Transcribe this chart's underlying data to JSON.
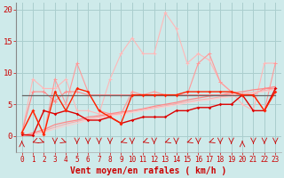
{
  "background_color": "#ceeaea",
  "grid_color": "#aacece",
  "xlabel": "Vent moyen/en rafales ( km/h )",
  "xlabel_color": "#cc0000",
  "xlabel_fontsize": 7,
  "tick_color": "#cc0000",
  "ylim": [
    0,
    21
  ],
  "xlim": [
    -0.5,
    23.5
  ],
  "yticks": [
    0,
    5,
    10,
    15,
    20
  ],
  "xticks": [
    0,
    1,
    2,
    3,
    4,
    5,
    6,
    7,
    8,
    9,
    10,
    11,
    12,
    13,
    14,
    15,
    16,
    17,
    18,
    19,
    20,
    21,
    22,
    23
  ],
  "y_lightest_pink": [
    0.5,
    9,
    7.5,
    7.5,
    9,
    4,
    4,
    3.5,
    9,
    13,
    15.5,
    13,
    13,
    19.5,
    17,
    11.5,
    13,
    12,
    8.5,
    7,
    5,
    4,
    11.5,
    11.5
  ],
  "y_light_pink": [
    0.5,
    4,
    0.2,
    9,
    5,
    11.5,
    7,
    4,
    3.5,
    3.5,
    7,
    6.5,
    7,
    6.5,
    6.5,
    6.5,
    11.5,
    13,
    8.5,
    7,
    6.5,
    6.5,
    4,
    11.5
  ],
  "y_med_pink": [
    0.5,
    7,
    7,
    5.5,
    7,
    7,
    6.5,
    6.5,
    6.5,
    6.5,
    6.5,
    6.5,
    6.5,
    6.5,
    6.5,
    6.5,
    6.5,
    6.5,
    6.5,
    6.5,
    6.5,
    6.5,
    7.5,
    7.5
  ],
  "y_hline": [
    6.5,
    6.5,
    6.5,
    6.5,
    6.5,
    6.5,
    6.5,
    6.5,
    6.5,
    6.5,
    6.5,
    6.5,
    6.5,
    6.5,
    6.5,
    6.5,
    6.5,
    6.5,
    6.5,
    6.5,
    6.5,
    6.5,
    6.5,
    6.5
  ],
  "y_red1": [
    0.0,
    0.5,
    1.0,
    1.8,
    2.2,
    2.5,
    3.0,
    3.2,
    3.5,
    3.8,
    4.0,
    4.3,
    4.7,
    5.0,
    5.3,
    5.7,
    6.0,
    6.3,
    6.5,
    6.8,
    7.0,
    7.3,
    7.5,
    7.8
  ],
  "y_red2": [
    0.0,
    0.3,
    0.8,
    1.4,
    1.9,
    2.3,
    2.7,
    3.0,
    3.3,
    3.6,
    3.9,
    4.2,
    4.5,
    4.8,
    5.1,
    5.4,
    5.7,
    5.9,
    6.2,
    6.4,
    6.7,
    6.9,
    7.2,
    7.5
  ],
  "y_red3": [
    0.0,
    0.2,
    0.6,
    1.1,
    1.6,
    2.0,
    2.5,
    2.8,
    3.1,
    3.4,
    3.7,
    4.0,
    4.3,
    4.6,
    4.9,
    5.2,
    5.5,
    5.7,
    6.0,
    6.2,
    6.5,
    6.8,
    7.0,
    7.3
  ],
  "y_dark_red1": [
    0.2,
    0.1,
    4.0,
    3.5,
    4.0,
    3.5,
    2.5,
    2.5,
    3.0,
    2.0,
    2.5,
    3.0,
    3.0,
    3.0,
    4.0,
    4.0,
    4.5,
    4.5,
    5.0,
    5.0,
    6.5,
    4.0,
    4.0,
    7.5
  ],
  "y_dark_red2": [
    0.5,
    4.0,
    0.2,
    7.0,
    4.0,
    7.5,
    7.0,
    4.0,
    3.0,
    2.0,
    6.5,
    6.5,
    6.5,
    6.5,
    6.5,
    7.0,
    7.0,
    7.0,
    7.0,
    7.0,
    6.5,
    6.5,
    4.0,
    7.0
  ],
  "wind_arrows_x": [
    0,
    1,
    2,
    3,
    4,
    5,
    6,
    7,
    8,
    9,
    10,
    11,
    12,
    13,
    14,
    15,
    16,
    17,
    18,
    19,
    20,
    21,
    22,
    23
  ],
  "wind_angles": [
    90,
    225,
    315,
    270,
    315,
    270,
    270,
    270,
    270,
    225,
    270,
    225,
    270,
    225,
    270,
    225,
    270,
    225,
    270,
    270,
    90,
    270,
    270,
    270
  ]
}
